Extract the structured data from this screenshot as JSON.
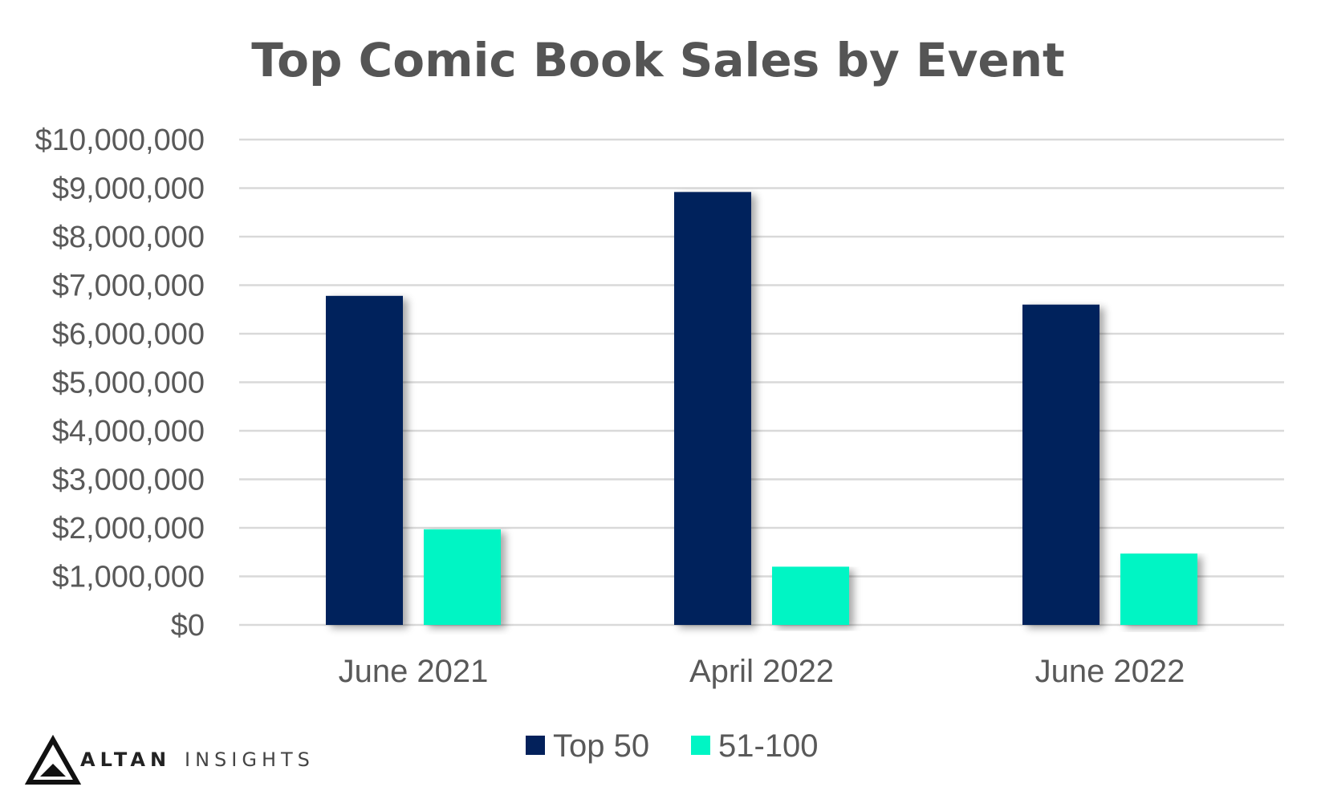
{
  "chart_data": {
    "type": "bar",
    "title": "Top Comic Book Sales by Event",
    "xlabel": "",
    "ylabel": "",
    "categories": [
      "June 2021",
      "April 2022",
      "June 2022"
    ],
    "series": [
      {
        "name": "Top 50",
        "values": [
          6780000,
          8920000,
          6600000
        ],
        "color": "#03215b"
      },
      {
        "name": "51-100",
        "values": [
          1970000,
          1200000,
          1470000
        ],
        "color": "#00f5c4"
      }
    ],
    "ylim": [
      0,
      10000000
    ],
    "yticks": [
      {
        "value": 0,
        "label": "$0"
      },
      {
        "value": 1000000,
        "label": "$1,000,000"
      },
      {
        "value": 2000000,
        "label": "$2,000,000"
      },
      {
        "value": 3000000,
        "label": "$3,000,000"
      },
      {
        "value": 4000000,
        "label": "$4,000,000"
      },
      {
        "value": 5000000,
        "label": "$5,000,000"
      },
      {
        "value": 6000000,
        "label": "$6,000,000"
      },
      {
        "value": 7000000,
        "label": "$7,000,000"
      },
      {
        "value": 8000000,
        "label": "$8,000,000"
      },
      {
        "value": 9000000,
        "label": "$9,000,000"
      },
      {
        "value": 10000000,
        "label": "$10,000,000"
      }
    ],
    "grid": true,
    "legend_position": "bottom"
  },
  "branding": {
    "logo_icon": "altan-logo-icon",
    "name_bold": "ALTAN",
    "name_light": "INSIGHTS"
  },
  "colors": {
    "title": "#555555",
    "gridline": "#d9d9d9",
    "axis_text": "#595959"
  }
}
